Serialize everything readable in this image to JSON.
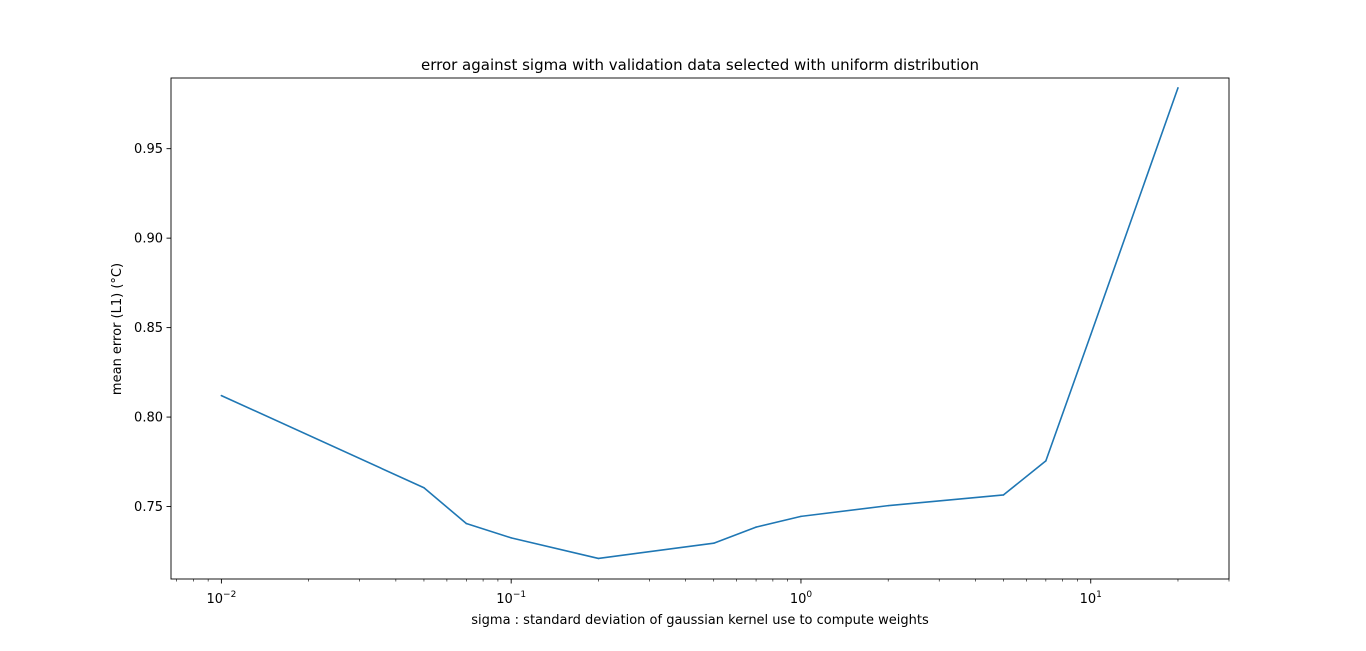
{
  "chart_data": {
    "type": "line",
    "title": "error against sigma with validation data selected with uniform distribution",
    "xlabel": "sigma : standard deviation of gaussian kernel use to compute weights",
    "ylabel": "mean error (L1) (°C)",
    "xscale": "log",
    "xlim": [
      0.0067,
      30
    ],
    "ylim": [
      0.7095,
      0.9895
    ],
    "xticks": [
      {
        "value": 0.01,
        "base": "10",
        "exp": "−2"
      },
      {
        "value": 0.1,
        "base": "10",
        "exp": "−1"
      },
      {
        "value": 1,
        "base": "10",
        "exp": "0"
      },
      {
        "value": 10,
        "base": "10",
        "exp": "1"
      }
    ],
    "yticks": [
      "0.75",
      "0.80",
      "0.85",
      "0.90",
      "0.95"
    ],
    "grid": false,
    "color": "#1f77b4",
    "series": [
      {
        "x": [
          0.01,
          0.05,
          0.07,
          0.1,
          0.2,
          0.5,
          0.7,
          1,
          2,
          5,
          7,
          10,
          20
        ],
        "y": [
          0.812,
          0.7605,
          0.7405,
          0.7325,
          0.721,
          0.7295,
          0.7385,
          0.7445,
          0.7505,
          0.7565,
          0.7755,
          0.846,
          0.984
        ]
      }
    ]
  }
}
